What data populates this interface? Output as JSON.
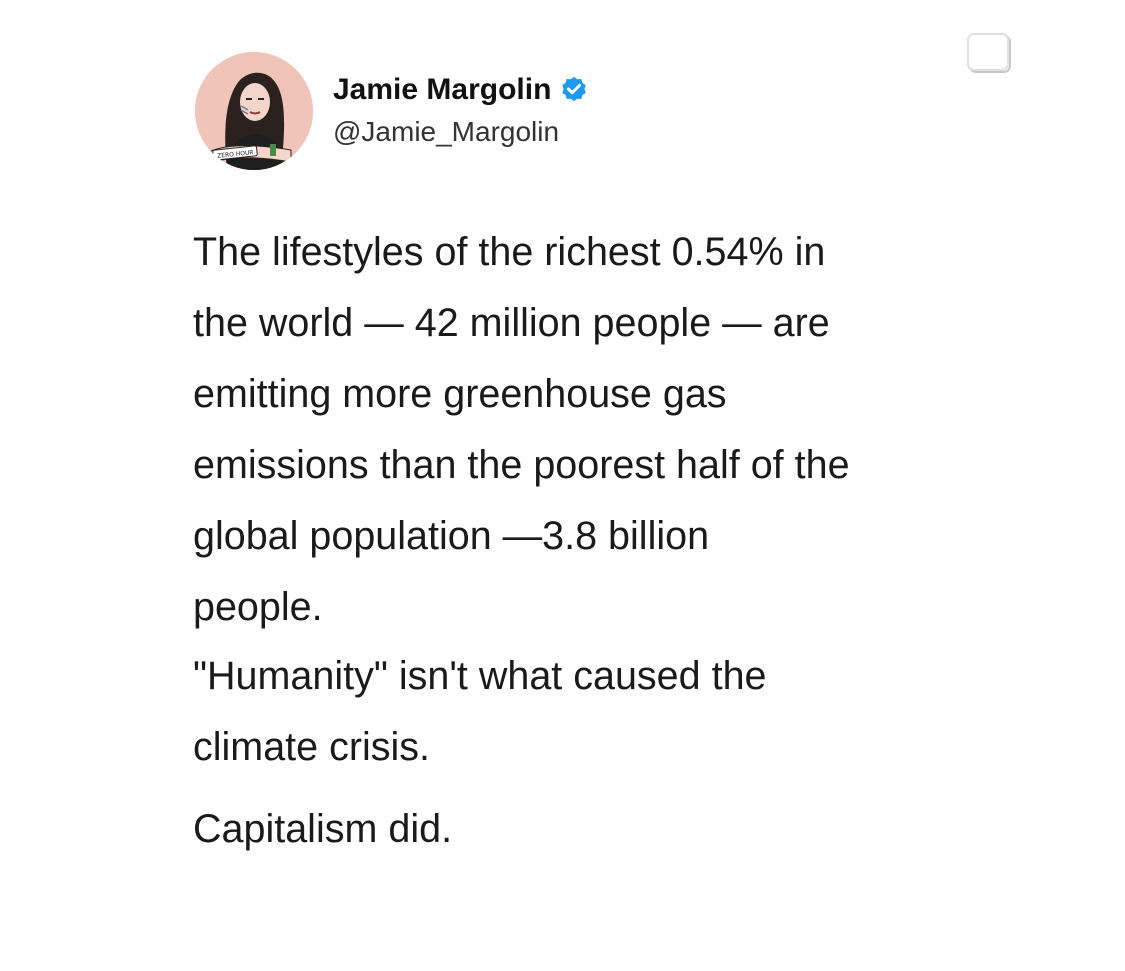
{
  "author": {
    "name": "Jamie Margolin",
    "handle": "@Jamie_Margolin",
    "verified": true,
    "avatar_icon": "avatar-portrait-icon",
    "avatar_caption": "ZERO HOUR"
  },
  "colors": {
    "verified_badge": "#1d9bf0",
    "text": "#1a1a1a",
    "avatar_bg": "#f0c4b8"
  },
  "tweet": {
    "lines_p1": [
      "The lifestyles of the richest 0.54% in",
      "the world — 42 million people — are",
      "emitting more greenhouse gas",
      "emissions than the poorest half of the",
      "global population —3.8 billion",
      "people."
    ],
    "lines_p2": [
      "\"Humanity\" isn't what caused the",
      "climate crisis."
    ],
    "lines_p3": [
      "Capitalism did."
    ]
  },
  "icons": {
    "bookmark": "square-select-icon",
    "verified": "verified-badge-icon"
  }
}
